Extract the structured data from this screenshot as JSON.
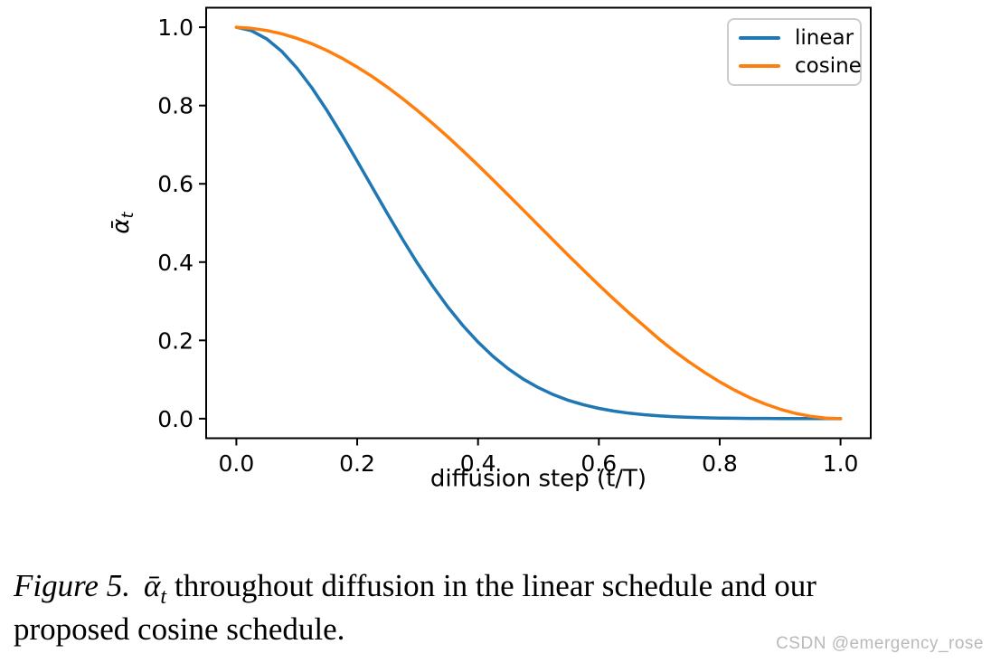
{
  "chart_data": {
    "type": "line",
    "title": "",
    "xlabel": "diffusion step (t/T)",
    "ylabel_symbol": "ᾱ",
    "ylabel_subscript": "t",
    "xlim": [
      -0.05,
      1.05
    ],
    "ylim": [
      -0.05,
      1.05
    ],
    "xticks": [
      0.0,
      0.2,
      0.4,
      0.6,
      0.8,
      1.0
    ],
    "xtick_labels": [
      "0.0",
      "0.2",
      "0.4",
      "0.6",
      "0.8",
      "1.0"
    ],
    "yticks": [
      0.0,
      0.2,
      0.4,
      0.6,
      0.8,
      1.0
    ],
    "ytick_labels": [
      "0.0",
      "0.2",
      "0.4",
      "0.6",
      "0.8",
      "1.0"
    ],
    "grid": false,
    "legend_position": "upper right",
    "axis_color": "#000000",
    "x": [
      0,
      0.025,
      0.05,
      0.075,
      0.1,
      0.125,
      0.15,
      0.175,
      0.2,
      0.225,
      0.25,
      0.275,
      0.3,
      0.325,
      0.35,
      0.375,
      0.4,
      0.425,
      0.45,
      0.475,
      0.5,
      0.525,
      0.55,
      0.575,
      0.6,
      0.625,
      0.65,
      0.675,
      0.7,
      0.725,
      0.75,
      0.775,
      0.8,
      0.825,
      0.85,
      0.875,
      0.9,
      0.925,
      0.95,
      0.975,
      1.0
    ],
    "series": [
      {
        "name": "linear",
        "color": "#1f77b4",
        "values": [
          1.0,
          0.9913,
          0.9706,
          0.9385,
          0.8963,
          0.8454,
          0.7875,
          0.7245,
          0.6584,
          0.5908,
          0.5237,
          0.4584,
          0.3963,
          0.3384,
          0.2854,
          0.2377,
          0.1956,
          0.1588,
          0.1275,
          0.101,
          0.0791,
          0.0611,
          0.0467,
          0.0352,
          0.0262,
          0.0193,
          0.014,
          0.01,
          0.0071,
          0.005,
          0.0034,
          0.0023,
          0.0016,
          0.0011,
          0.0007,
          0.0005,
          0.0003,
          0.0002,
          0.0001,
          0.0001,
          0.0
        ]
      },
      {
        "name": "cosine",
        "color": "#ff7f0e",
        "values": [
          0.9998,
          0.9974,
          0.9918,
          0.9834,
          0.9719,
          0.9577,
          0.9406,
          0.9209,
          0.8985,
          0.8738,
          0.8469,
          0.8178,
          0.7868,
          0.754,
          0.7199,
          0.6842,
          0.6474,
          0.6097,
          0.5714,
          0.5328,
          0.4939,
          0.4551,
          0.4165,
          0.3786,
          0.3414,
          0.3052,
          0.2701,
          0.2367,
          0.2031,
          0.1723,
          0.1443,
          0.118,
          0.094,
          0.0725,
          0.0536,
          0.0375,
          0.0241,
          0.0136,
          0.0061,
          0.0015,
          0.0
        ]
      }
    ]
  },
  "caption": {
    "figure_label": "Figure 5.",
    "math_symbol": "ᾱ",
    "math_subscript": "t",
    "line1_rest": "throughout diffusion in the linear schedule and our",
    "line2": "proposed cosine schedule."
  },
  "watermark": {
    "text": "CSDN @emergency_rose",
    "color": "#b9b9b9"
  }
}
